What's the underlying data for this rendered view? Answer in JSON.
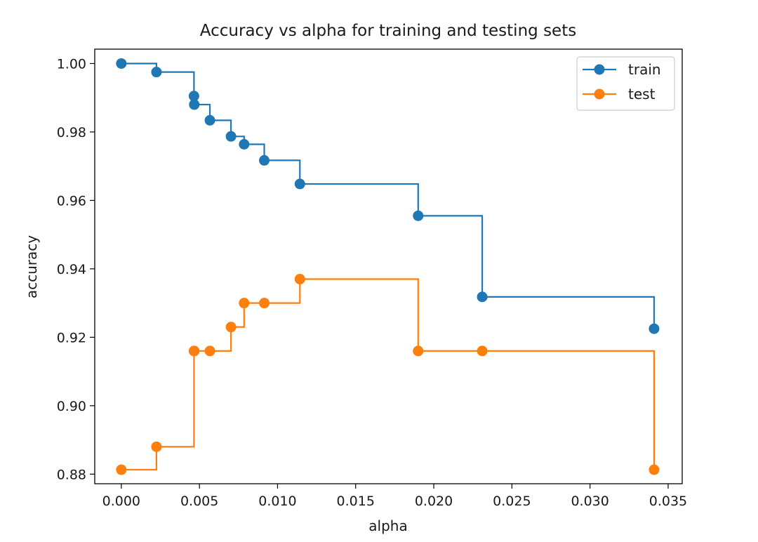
{
  "chart_data": {
    "type": "line",
    "title": "Accuracy vs alpha for training and testing sets",
    "xlabel": "alpha",
    "ylabel": "accuracy",
    "xlim": [
      -0.0017,
      0.0359
    ],
    "ylim": [
      0.8772,
      1.0042
    ],
    "xticks": [
      0.0,
      0.005,
      0.01,
      0.015,
      0.02,
      0.025,
      0.03,
      0.035
    ],
    "xtick_labels": [
      "0.000",
      "0.005",
      "0.010",
      "0.015",
      "0.020",
      "0.025",
      "0.030",
      "0.035"
    ],
    "yticks": [
      0.88,
      0.9,
      0.92,
      0.94,
      0.96,
      0.98,
      1.0
    ],
    "ytick_labels": [
      "0.88",
      "0.90",
      "0.92",
      "0.94",
      "0.96",
      "0.98",
      "1.00"
    ],
    "drawstyle": "steps-post",
    "marker": "o",
    "grid": false,
    "legend_position": "top-right",
    "x": [
      0.0,
      0.00225,
      0.00465,
      0.00467,
      0.00567,
      0.00702,
      0.00786,
      0.00915,
      0.01143,
      0.019,
      0.0231,
      0.0341
    ],
    "series": [
      {
        "name": "train",
        "color": "#1f77b4",
        "values": [
          1.0,
          0.9975,
          0.9905,
          0.988,
          0.9834,
          0.9787,
          0.9764,
          0.9717,
          0.9648,
          0.9555,
          0.9318,
          0.9225
        ]
      },
      {
        "name": "test",
        "color": "#ff7f0e",
        "values": [
          0.8813,
          0.888,
          0.916,
          0.916,
          0.916,
          0.923,
          0.93,
          0.93,
          0.937,
          0.916,
          0.916,
          0.8813
        ]
      }
    ]
  }
}
